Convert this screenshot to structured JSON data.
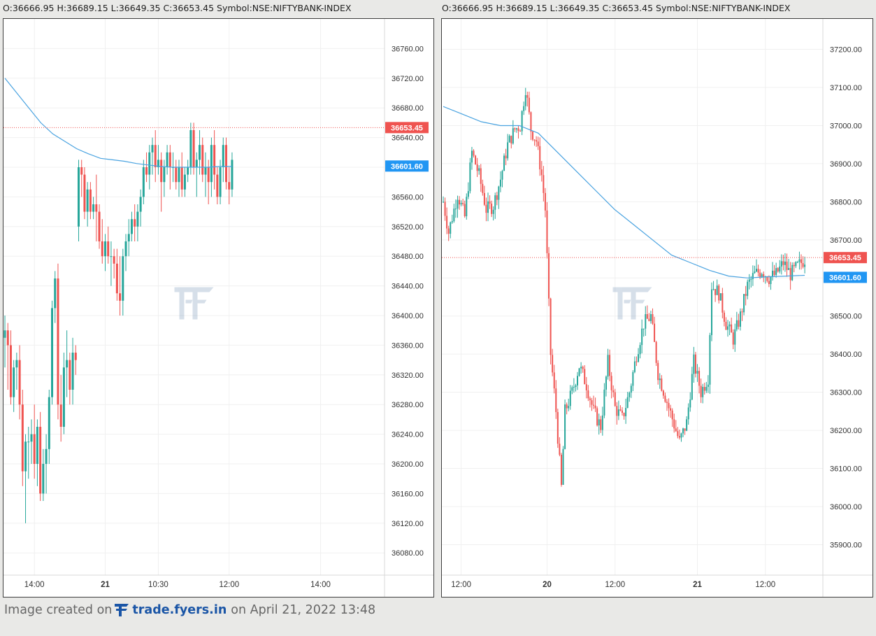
{
  "header_left": "O:36666.95 H:36689.15 L:36649.35 C:36653.45 Symbol:NSE:NIFTYBANK-INDEX",
  "header_right": "O:36666.95 H:36689.15 L:36649.35 C:36653.45 Symbol:NSE:NIFTYBANK-INDEX",
  "colors": {
    "up": "#26a69a",
    "down": "#ef5350",
    "ma": "#4aa3e0",
    "last_price_tag": "#ef5350",
    "ma_tag": "#2196f3"
  },
  "footer": {
    "prefix": "Image created on",
    "brand": "trade.fyers.in",
    "suffix": "on April 21, 2022 13:48",
    "logo_icon": "fyers-logo-icon"
  },
  "watermark_icon": "fyers-logo-icon",
  "chart_data": [
    {
      "type": "candlestick",
      "symbol": "NSE:NIFTYBANK-INDEX",
      "y_ticks": [
        "36760.00",
        "36720.00",
        "36680.00",
        "36640.00",
        "36600.00",
        "36560.00",
        "36520.00",
        "36480.00",
        "36440.00",
        "36400.00",
        "36360.00",
        "36320.00",
        "36280.00",
        "36240.00",
        "36200.00",
        "36160.00",
        "36120.00",
        "36080.00"
      ],
      "ylim": [
        36050,
        36800
      ],
      "x_ticks": [
        {
          "label": "14:00",
          "bold": false,
          "idx": 10
        },
        {
          "label": "21",
          "bold": true,
          "idx": 34
        },
        {
          "label": "10:30",
          "bold": false,
          "idx": 52
        },
        {
          "label": "12:00",
          "bold": false,
          "idx": 76
        },
        {
          "label": "14:00",
          "bold": false,
          "idx": 107
        }
      ],
      "last_price": "36653.45",
      "ma_value": "36601.60",
      "candles": [
        [
          36370,
          36400,
          36330,
          36380
        ],
        [
          36380,
          36390,
          36300,
          36360
        ],
        [
          36360,
          36380,
          36280,
          36290
        ],
        [
          36290,
          36340,
          36270,
          36330
        ],
        [
          36330,
          36350,
          36300,
          36340
        ],
        [
          36340,
          36360,
          36260,
          36280
        ],
        [
          36280,
          36300,
          36170,
          36190
        ],
        [
          36190,
          36240,
          36120,
          36230
        ],
        [
          36230,
          36250,
          36180,
          36230
        ],
        [
          36230,
          36260,
          36200,
          36240
        ],
        [
          36240,
          36280,
          36180,
          36200
        ],
        [
          36200,
          36260,
          36170,
          36250
        ],
        [
          36250,
          36270,
          36150,
          36160
        ],
        [
          36160,
          36220,
          36150,
          36200
        ],
        [
          36200,
          36240,
          36160,
          36220
        ],
        [
          36220,
          36300,
          36200,
          36290
        ],
        [
          36290,
          36420,
          36280,
          36410
        ],
        [
          36410,
          36460,
          36390,
          36450
        ],
        [
          36450,
          36470,
          36260,
          36280
        ],
        [
          36280,
          36320,
          36230,
          36250
        ],
        [
          36250,
          36350,
          36240,
          36330
        ],
        [
          36330,
          36380,
          36290,
          36340
        ],
        [
          36340,
          36350,
          36280,
          36300
        ],
        [
          36300,
          36370,
          36280,
          36350
        ],
        [
          36350,
          36360,
          36320,
          36340
        ],
        [
          36520,
          36610,
          36500,
          36600
        ],
        [
          36600,
          36610,
          36560,
          36590
        ],
        [
          36590,
          36600,
          36530,
          36540
        ],
        [
          36540,
          36580,
          36520,
          36570
        ],
        [
          36570,
          36580,
          36530,
          36540
        ],
        [
          36540,
          36560,
          36530,
          36550
        ],
        [
          36550,
          36590,
          36500,
          36540
        ],
        [
          36540,
          36550,
          36490,
          36500
        ],
        [
          36500,
          36530,
          36470,
          36480
        ],
        [
          36480,
          36510,
          36460,
          36500
        ],
        [
          36500,
          36520,
          36470,
          36480
        ],
        [
          36480,
          36500,
          36440,
          36480
        ],
        [
          36480,
          36490,
          36450,
          36470
        ],
        [
          36470,
          36490,
          36420,
          36430
        ],
        [
          36430,
          36480,
          36400,
          36420
        ],
        [
          36420,
          36490,
          36400,
          36480
        ],
        [
          36480,
          36510,
          36460,
          36500
        ],
        [
          36500,
          36530,
          36480,
          36510
        ],
        [
          36510,
          36540,
          36500,
          36530
        ],
        [
          36530,
          36550,
          36500,
          36520
        ],
        [
          36520,
          36550,
          36500,
          36540
        ],
        [
          36540,
          36570,
          36520,
          36560
        ],
        [
          36560,
          36610,
          36550,
          36600
        ],
        [
          36600,
          36620,
          36580,
          36590
        ],
        [
          36590,
          36630,
          36570,
          36620
        ],
        [
          36620,
          36640,
          36590,
          36630
        ],
        [
          36630,
          36650,
          36580,
          36600
        ],
        [
          36600,
          36630,
          36590,
          36610
        ],
        [
          36610,
          36620,
          36540,
          36580
        ],
        [
          36580,
          36610,
          36560,
          36600
        ],
        [
          36600,
          36630,
          36590,
          36620
        ],
        [
          36620,
          36630,
          36570,
          36600
        ],
        [
          36600,
          36620,
          36580,
          36600
        ],
        [
          36600,
          36610,
          36570,
          36580
        ],
        [
          36580,
          36610,
          36560,
          36600
        ],
        [
          36600,
          36620,
          36560,
          36570
        ],
        [
          36570,
          36600,
          36560,
          36590
        ],
        [
          36590,
          36610,
          36580,
          36600
        ],
        [
          36600,
          36660,
          36590,
          36650
        ],
        [
          36650,
          36660,
          36590,
          36600
        ],
        [
          36600,
          36620,
          36560,
          36610
        ],
        [
          36610,
          36650,
          36590,
          36630
        ],
        [
          36630,
          36640,
          36580,
          36590
        ],
        [
          36590,
          36620,
          36560,
          36600
        ],
        [
          36600,
          36610,
          36550,
          36580
        ],
        [
          36580,
          36640,
          36560,
          36630
        ],
        [
          36630,
          36650,
          36570,
          36590
        ],
        [
          36590,
          36600,
          36550,
          36560
        ],
        [
          36560,
          36610,
          36550,
          36600
        ],
        [
          36600,
          36640,
          36580,
          36630
        ],
        [
          36630,
          36640,
          36570,
          36580
        ],
        [
          36580,
          36600,
          36550,
          36570
        ],
        [
          36570,
          36620,
          36560,
          36610
        ]
      ],
      "ma": [
        36720,
        36700,
        36680,
        36660,
        36645,
        36635,
        36625,
        36618,
        36612,
        36610,
        36608,
        36605,
        36603,
        36601,
        36600,
        36600,
        36600,
        36600,
        36601,
        36601
      ]
    },
    {
      "type": "candlestick",
      "symbol": "NSE:NIFTYBANK-INDEX",
      "y_ticks": [
        "37200.00",
        "37100.00",
        "37000.00",
        "36900.00",
        "36800.00",
        "36700.00",
        "36600.00",
        "36500.00",
        "36400.00",
        "36300.00",
        "36200.00",
        "36100.00",
        "36000.00",
        "35900.00"
      ],
      "ylim": [
        35820,
        37280
      ],
      "x_ticks": [
        {
          "label": "12:00",
          "bold": false,
          "idx": 10
        },
        {
          "label": "20",
          "bold": true,
          "idx": 58
        },
        {
          "label": "12:00",
          "bold": false,
          "idx": 96
        },
        {
          "label": "21",
          "bold": true,
          "idx": 142
        },
        {
          "label": "12:00",
          "bold": false,
          "idx": 180
        }
      ],
      "last_price": "36653.45",
      "ma_value": "36601.60",
      "ma": [
        37050,
        37030,
        37010,
        37000,
        37000,
        36980,
        36930,
        36880,
        36830,
        36780,
        36740,
        36700,
        36660,
        36640,
        36620,
        36605,
        36600,
        36603,
        36605,
        36607
      ]
    }
  ]
}
